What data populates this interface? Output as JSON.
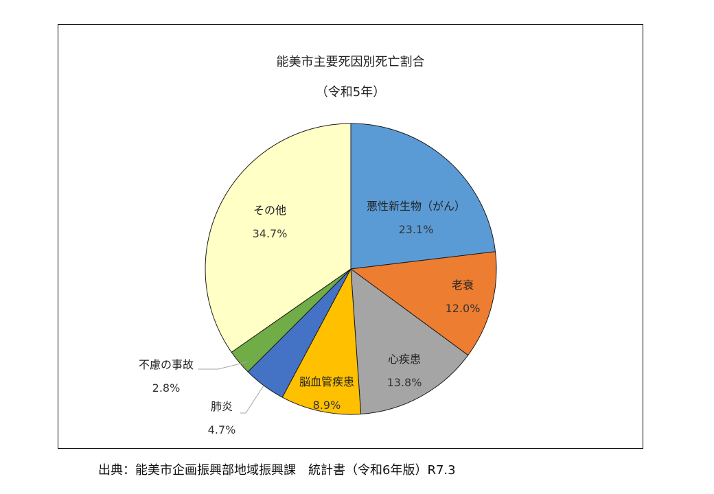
{
  "chart_data": {
    "type": "pie",
    "title": "能美市主要死因別死亡割合",
    "subtitle": "（令和5年）",
    "start_angle_deg": 90,
    "direction": "clockwise",
    "categories": [
      "悪性新生物（がん）",
      "老衰",
      "心疾患",
      "脳血管疾患",
      "肺炎",
      "不慮の事故",
      "その他"
    ],
    "values": [
      23.1,
      12.0,
      13.8,
      8.9,
      4.7,
      2.8,
      34.7
    ],
    "value_labels": [
      "23.1%",
      "12.0%",
      "13.8%",
      "8.9%",
      "4.7%",
      "2.8%",
      "34.7%"
    ],
    "colors": [
      "#5B9BD5",
      "#ED7D31",
      "#A5A5A5",
      "#FFC000",
      "#4472C4",
      "#70AD47",
      "#FFFFC6"
    ],
    "legend": "none (data labels on/near slices)",
    "unit": "%"
  },
  "labels": [
    {
      "name": "悪性新生物（がん）",
      "pct": "23.1%"
    },
    {
      "name": "老衰",
      "pct": "12.0%"
    },
    {
      "name": "心疾患",
      "pct": "13.8%"
    },
    {
      "name": "脳血管疾患",
      "pct": "8.9%"
    },
    {
      "name": "肺炎",
      "pct": "4.7%"
    },
    {
      "name": "不慮の事故",
      "pct": "2.8%"
    },
    {
      "name": "その他",
      "pct": "34.7%"
    }
  ],
  "source": "出典：能美市企画振興部地域振興課　統計書（令和6年版）R7.3"
}
